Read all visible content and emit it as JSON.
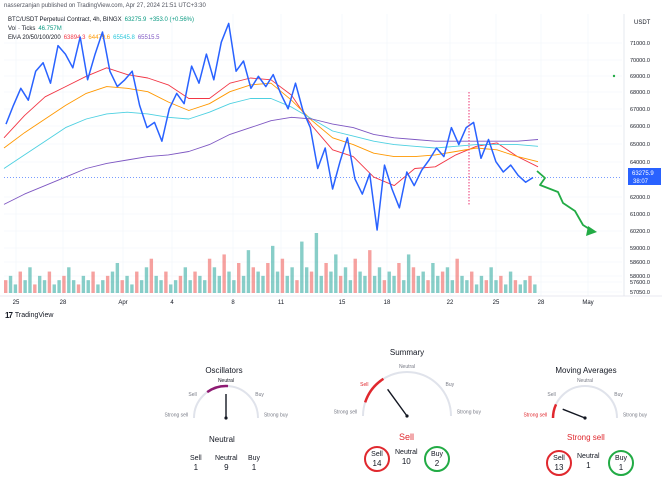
{
  "header": {
    "published": "nasserzanjan published on TradingView.com, Apr 27, 2024 21:51 UTC+3:30",
    "currency": "USDT"
  },
  "legend": {
    "symbol_line": "BTC/USDT Perpetual Contract, 4h, BINGX",
    "price": "63275.9",
    "change": "+353.0 (+0.56%)",
    "vol_label": "Vol · Ticks",
    "vol_value": "46.757M",
    "ema_label": "EMA 20/50/100/200",
    "ema20": "63894.3",
    "ema50": "64479.6",
    "ema100": "65545.8",
    "ema200": "65515.5"
  },
  "colors": {
    "price": "#2962ff",
    "ema20": "#f23645",
    "ema50": "#ff9800",
    "ema100": "#4dd0e1",
    "ema200": "#7e57c2",
    "vol_up": "#26a69a",
    "vol_down": "#ef5350",
    "forecast": "#22ab45",
    "marker": "#e91e63",
    "sell_red": "#e0282e",
    "buy_green": "#22ab45"
  },
  "chart_data": {
    "type": "line",
    "title": "BTC/USDT Perpetual Contract, 4h, BINGX",
    "x_ticks": [
      "25",
      "28",
      "Apr",
      "4",
      "8",
      "11",
      "15",
      "18",
      "22",
      "25",
      "28",
      "May"
    ],
    "y_ticks": [
      "71000.0",
      "70000.0",
      "69000.0",
      "68000.0",
      "67000.0",
      "66000.0",
      "65000.0",
      "64000.0",
      "62000.0",
      "61000.0",
      "60200.0",
      "59000.0",
      "58600.0",
      "58000.0",
      "57600.0",
      "57050.0"
    ],
    "current_price_label": "63275.9",
    "current_countdown": "38:07",
    "series": [
      {
        "name": "BTC/USDT",
        "values": [
          66400,
          67500,
          68500,
          67800,
          69500,
          70000,
          68800,
          71000,
          70500,
          69700,
          71500,
          69000,
          70500,
          71800,
          69500,
          68600,
          69000,
          69500,
          67500,
          66200,
          66500,
          65400,
          67300,
          68200,
          67600,
          69800,
          68800,
          70500,
          69000,
          71200,
          72300,
          69500,
          70100,
          68500,
          69200,
          68600,
          69300,
          68200,
          67300,
          68800,
          67200,
          66200,
          63800,
          65000,
          62600,
          64200,
          65600,
          63200,
          62300,
          63500,
          60200,
          64000,
          62600,
          61500,
          63600,
          62800,
          63700,
          64300,
          65000,
          64500,
          66200,
          65200,
          66200,
          66500,
          64400,
          65500,
          64200,
          63600,
          64000,
          63400,
          63000,
          63276
        ]
      },
      {
        "name": "EMA 20",
        "values": [
          65600,
          66900,
          68000,
          68600,
          69200,
          69700,
          69300,
          69100,
          68700,
          67900,
          67900,
          68800,
          69100,
          69000,
          68100,
          66300,
          64900,
          64500,
          63300,
          62800,
          63800,
          63900,
          64600,
          65100,
          65300,
          64500,
          63900
        ]
      },
      {
        "name": "EMA 50",
        "values": [
          65000,
          65900,
          66700,
          67500,
          68200,
          68600,
          68500,
          68300,
          67700,
          67200,
          67600,
          68300,
          68700,
          68800,
          67800,
          66600,
          65600,
          65200,
          64700,
          64500,
          64500,
          64600,
          64800,
          65000,
          64900,
          64500,
          64200
        ]
      },
      {
        "name": "EMA 100",
        "values": [
          63800,
          64600,
          65400,
          66200,
          66700,
          67000,
          67100,
          67000,
          66800,
          66700,
          67100,
          67600,
          67900,
          67900,
          67400,
          66700,
          66000,
          65700,
          65400,
          65200,
          65100,
          65000,
          65100,
          65200,
          65200,
          65200,
          65100
        ]
      },
      {
        "name": "EMA 200",
        "values": [
          61700,
          62300,
          62800,
          63300,
          63800,
          64100,
          64300,
          64500,
          64600,
          64800,
          65200,
          65800,
          66200,
          66600,
          66800,
          66700,
          66400,
          66200,
          65800,
          65600,
          65500,
          65400,
          65400,
          65400,
          65400,
          65400,
          65500
        ]
      }
    ],
    "volume": [
      3,
      4,
      2,
      5,
      3,
      6,
      2,
      4,
      3,
      5,
      2,
      3,
      4,
      6,
      3,
      2,
      4,
      3,
      5,
      2,
      3,
      4,
      5,
      7,
      3,
      4,
      2,
      5,
      3,
      6,
      8,
      4,
      3,
      5,
      2,
      3,
      4,
      6,
      3,
      5,
      4,
      3,
      8,
      6,
      4,
      9,
      5,
      3,
      7,
      4,
      10,
      6,
      5,
      4,
      7,
      11,
      5,
      8,
      4,
      6,
      3,
      12,
      6,
      5,
      14,
      4,
      7,
      5,
      9,
      4,
      6,
      3,
      8,
      5,
      4,
      10,
      4,
      6,
      3,
      5,
      4,
      7,
      3,
      9,
      6,
      4,
      5,
      3,
      7,
      4,
      5,
      6,
      3,
      8,
      4,
      3,
      5,
      2,
      4,
      3,
      6,
      3,
      4,
      2,
      5,
      3,
      2,
      3,
      4,
      2
    ]
  },
  "technicals": {
    "oscillators": {
      "title": "Oscillators",
      "status": "Neutral",
      "scale": [
        "Strong sell",
        "Sell",
        "Neutral",
        "Buy",
        "Strong buy"
      ],
      "counts": [
        {
          "label": "Sell",
          "value": "1"
        },
        {
          "label": "Neutral",
          "value": "9"
        },
        {
          "label": "Buy",
          "value": "1"
        }
      ],
      "needle_fraction": 0.5
    },
    "summary": {
      "title": "Summary",
      "status": "Sell",
      "scale": [
        "Strong sell",
        "Sell",
        "Neutral",
        "Buy",
        "Strong buy"
      ],
      "counts": [
        {
          "label": "Sell",
          "value": "14"
        },
        {
          "label": "Neutral",
          "value": "10"
        },
        {
          "label": "Buy",
          "value": "2"
        }
      ],
      "needle_fraction": 0.3
    },
    "moving_averages": {
      "title": "Moving Averages",
      "status": "Strong sell",
      "scale": [
        "Strong sell",
        "Sell",
        "Neutral",
        "Buy",
        "Strong buy"
      ],
      "counts": [
        {
          "label": "Sell",
          "value": "13"
        },
        {
          "label": "Neutral",
          "value": "1"
        },
        {
          "label": "Buy",
          "value": "1"
        }
      ],
      "needle_fraction": 0.12
    }
  },
  "footer": {
    "brand": "TradingView"
  }
}
